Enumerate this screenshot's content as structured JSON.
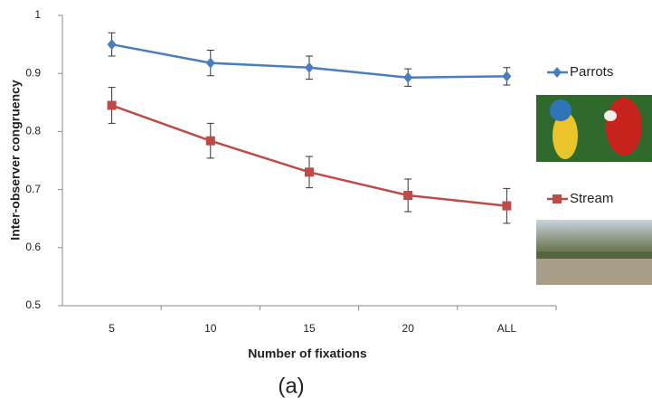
{
  "chart_data": {
    "type": "line",
    "x_label": "Number of fixations",
    "y_label": "Inter-observer congruency",
    "caption": "(a)",
    "categories": [
      "5",
      "10",
      "15",
      "20",
      "ALL"
    ],
    "series": [
      {
        "name": "Parrots",
        "color": "#4a7ebb",
        "marker": "diamond",
        "values": [
          0.95,
          0.918,
          0.91,
          0.893,
          0.895
        ],
        "errors": [
          0.02,
          0.022,
          0.02,
          0.015,
          0.015
        ]
      },
      {
        "name": "Stream",
        "color": "#be4b48",
        "marker": "square",
        "values": [
          0.845,
          0.784,
          0.73,
          0.69,
          0.672
        ],
        "errors": [
          0.031,
          0.03,
          0.027,
          0.028,
          0.03
        ]
      }
    ],
    "ylim": [
      0.5,
      1
    ],
    "yticks": [
      0.5,
      0.6,
      0.7,
      0.8,
      0.9,
      1
    ],
    "grid": false
  }
}
